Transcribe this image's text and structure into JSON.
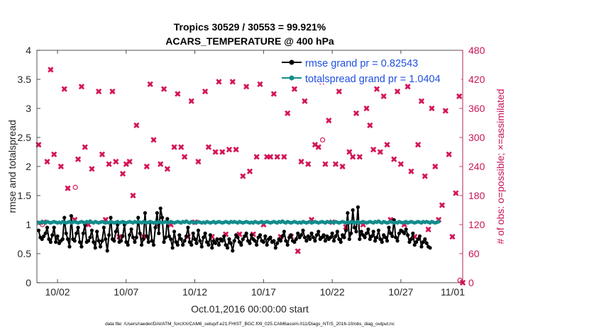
{
  "chart_data": {
    "type": "line",
    "title_line1": "Tropics 30529 / 30553 = 99.921%",
    "title_line2": "ACARS_TEMPERATURE @ 400 hPa",
    "xlabel": "Oct.01,2016 00:00:00 start",
    "ylabel_left": "rmse and totalspread",
    "ylabel_right": "# of obs: o=possible; ×=assimilated",
    "footnote": "data file: /Users/raeder/DAI/ATM_forcXX/CAM6_setup/f.e21.FHIST_BGC.f09_025.CAM6assim.011/Diags_NTrS_2016-10/obs_diag_output.nc",
    "xlim": [
      0.5,
      31.5
    ],
    "ylim_left": [
      0,
      4
    ],
    "ylim_right": [
      0,
      480
    ],
    "x_ticks": [
      {
        "x": 2,
        "label": "10/02"
      },
      {
        "x": 7,
        "label": "10/07"
      },
      {
        "x": 12,
        "label": "10/12"
      },
      {
        "x": 17,
        "label": "10/17"
      },
      {
        "x": 22,
        "label": "10/22"
      },
      {
        "x": 27,
        "label": "10/27"
      },
      {
        "x": 32,
        "label": "11/01"
      }
    ],
    "y_ticks_left": [
      0,
      0.5,
      1,
      1.5,
      2,
      2.5,
      3,
      3.5,
      4
    ],
    "y_tick_labels_left": [
      "0",
      "0.5",
      "1",
      "1.5",
      "2",
      "2.5",
      "3",
      "3.5",
      "4"
    ],
    "y_ticks_right": [
      0,
      60,
      120,
      180,
      240,
      300,
      360,
      420,
      480
    ],
    "y_tick_labels_right": [
      "0",
      "60",
      "120",
      "180",
      "240",
      "300",
      "360",
      "420",
      "480"
    ],
    "colors": {
      "rmse": "#000000",
      "spread": "#148c8c",
      "obs": "#d4175a",
      "legend_text": "#1f50e0",
      "right_axis": "#c8145a"
    },
    "legend": {
      "placement": "top-right",
      "entries": [
        "rmse grand pr = 0.82543",
        "totalspread grand pr = 1.0404"
      ]
    },
    "series": [
      {
        "name": "rmse grand pr = 0.82543",
        "axis": "left",
        "x_start": 0.625,
        "x_step": 0.125,
        "values": [
          0.9,
          0.78,
          0.75,
          0.8,
          0.85,
          0.95,
          0.75,
          0.7,
          0.82,
          0.95,
          0.7,
          0.8,
          0.68,
          0.72,
          0.75,
          1.12,
          0.85,
          0.75,
          0.62,
          1.15,
          0.75,
          0.72,
          0.85,
          0.95,
          0.7,
          0.62,
          0.85,
          1.0,
          0.7,
          0.72,
          0.78,
          0.9,
          0.7,
          0.6,
          0.88,
          0.72,
          0.62,
          0.72,
          0.95,
          0.75,
          0.55,
          0.82,
          1.12,
          0.75,
          0.72,
          0.88,
          1.0,
          0.7,
          0.72,
          0.8,
          1.0,
          0.7,
          0.65,
          0.82,
          0.92,
          0.78,
          0.7,
          0.78,
          1.12,
          0.85,
          0.65,
          0.75,
          1.2,
          0.8,
          0.7,
          1.05,
          0.72,
          0.65,
          0.95,
          1.2,
          0.85,
          1.28,
          1.12,
          0.7,
          0.78,
          1.1,
          0.8,
          0.75,
          0.6,
          0.88,
          0.7,
          0.65,
          0.82,
          0.75,
          0.65,
          0.72,
          0.8,
          0.95,
          0.7,
          0.65,
          0.85,
          0.75,
          0.68,
          0.9,
          0.72,
          0.62,
          0.78,
          0.85,
          0.7,
          0.65,
          0.82,
          0.6,
          0.72,
          0.68,
          0.75,
          0.65,
          0.75,
          0.72,
          0.8,
          0.65,
          0.6,
          0.75,
          0.68,
          0.55,
          0.72,
          0.82,
          0.78,
          0.7,
          0.65,
          0.75,
          0.8,
          0.85,
          0.72,
          0.68,
          0.82,
          0.75,
          0.72,
          0.65,
          0.78,
          0.82,
          0.72,
          0.7,
          0.8,
          0.65,
          0.75,
          0.78,
          0.7,
          0.72,
          0.6,
          0.68,
          0.75,
          0.72,
          0.8,
          0.88,
          0.72,
          0.65,
          0.78,
          0.82,
          0.72,
          0.7,
          0.75,
          0.85,
          0.78,
          0.82,
          0.9,
          0.78,
          0.72,
          0.8,
          0.75,
          0.85,
          0.78,
          0.72,
          0.82,
          0.88,
          0.75,
          0.78,
          0.82,
          0.72,
          0.8,
          0.75,
          0.78,
          0.85,
          0.72,
          0.8,
          0.88,
          0.75,
          0.7,
          0.82,
          0.78,
          0.9,
          1.2,
          0.75,
          0.85,
          1.25,
          0.95,
          0.88,
          1.3,
          0.75,
          0.88,
          0.82,
          0.78,
          0.85,
          0.92,
          0.75,
          0.8,
          0.88,
          0.72,
          0.78,
          0.9,
          0.75,
          0.7,
          0.82,
          0.78,
          0.72,
          0.95,
          0.85,
          0.8,
          1.08,
          0.78,
          0.72,
          0.85,
          0.9,
          0.88,
          0.85,
          0.92,
          0.82,
          0.7,
          0.75,
          0.85,
          0.65,
          0.7,
          0.75,
          0.8,
          0.62,
          0.7,
          0.75,
          0.68,
          0.62,
          0.6
        ]
      },
      {
        "name": "totalspread grand pr = 1.0404",
        "axis": "left",
        "x_start": 0.625,
        "x_step": 0.125,
        "values": [
          1.04,
          1.03,
          1.05,
          1.04,
          1.03,
          1.05,
          1.04,
          1.03,
          1.04,
          1.05,
          1.04,
          1.03,
          1.04,
          1.03,
          1.05,
          1.04,
          1.03,
          1.04,
          1.05,
          1.03,
          1.04,
          1.05,
          1.04,
          1.03,
          1.04,
          1.05,
          1.04,
          1.03,
          1.05,
          1.04,
          1.06,
          1.04,
          1.03,
          1.05,
          1.04,
          1.03,
          1.04,
          1.05,
          1.04,
          1.03,
          1.04,
          1.03,
          1.05,
          1.04,
          1.03,
          1.04,
          1.05,
          1.03,
          1.04,
          1.05,
          1.04,
          1.03,
          1.04,
          1.05,
          1.04,
          1.03,
          1.05,
          1.04,
          1.05,
          1.04,
          1.03,
          1.05,
          1.04,
          1.03,
          1.04,
          1.05,
          1.04,
          1.03,
          1.04,
          1.03,
          1.05,
          1.04,
          1.03,
          1.04,
          1.05,
          1.03,
          1.04,
          1.05,
          1.04,
          1.03,
          1.04,
          1.05,
          1.04,
          1.03,
          1.05,
          1.04,
          1.06,
          1.04,
          1.03,
          1.05,
          1.04,
          1.03,
          1.04,
          1.05,
          1.04,
          1.03,
          1.04,
          1.03,
          1.05,
          1.04,
          1.03,
          1.04,
          1.05,
          1.03,
          1.04,
          1.05,
          1.04,
          1.03,
          1.04,
          1.05,
          1.04,
          1.03,
          1.05,
          1.04,
          1.05,
          1.04,
          1.03,
          1.05,
          1.04,
          1.03,
          1.04,
          1.05,
          1.04,
          1.03,
          1.04,
          1.03,
          1.05,
          1.04,
          1.03,
          1.04,
          1.05,
          1.03,
          1.04,
          1.05,
          1.04,
          1.03,
          1.04,
          1.05,
          1.04,
          1.03,
          1.05,
          1.04,
          1.06,
          1.04,
          1.03,
          1.05,
          1.04,
          1.03,
          1.04,
          1.05,
          1.04,
          1.03,
          1.04,
          1.03,
          1.05,
          1.04,
          1.03,
          1.04,
          1.05,
          1.03,
          1.04,
          1.05,
          1.04,
          1.03,
          1.04,
          1.05,
          1.04,
          1.03,
          1.05,
          1.04,
          1.05,
          1.04,
          1.03,
          1.05,
          1.04,
          1.03,
          1.04,
          1.05,
          1.04,
          1.03,
          1.04,
          1.03,
          1.05,
          1.04,
          1.03,
          1.04,
          1.05,
          1.03,
          1.04,
          1.05,
          1.04,
          1.03,
          1.04,
          1.05,
          1.04,
          1.03,
          1.05,
          1.04,
          1.06,
          1.04,
          1.03,
          1.05,
          1.04,
          1.03,
          1.04,
          1.05,
          1.04,
          1.03,
          1.04,
          1.03,
          1.05,
          1.04,
          1.03,
          1.04,
          1.05,
          1.03,
          1.04,
          1.05,
          1.04,
          1.03,
          1.04,
          1.05,
          1.04,
          1.03,
          1.05,
          1.04,
          1.05,
          1.04,
          1.03,
          1.05,
          1.04,
          1.03,
          1.04,
          1.05
        ]
      }
    ],
    "obs_points": [
      [
        0.62,
        285
      ],
      [
        1.0,
        125
      ],
      [
        1.25,
        250
      ],
      [
        1.5,
        440
      ],
      [
        1.75,
        265
      ],
      [
        2.25,
        240
      ],
      [
        2.5,
        400
      ],
      [
        2.75,
        195
      ],
      [
        3.25,
        130
      ],
      [
        3.5,
        255
      ],
      [
        3.75,
        405
      ],
      [
        4.0,
        280
      ],
      [
        4.25,
        120
      ],
      [
        4.5,
        235
      ],
      [
        5.0,
        395
      ],
      [
        5.25,
        265
      ],
      [
        5.5,
        130
      ],
      [
        5.75,
        245
      ],
      [
        6.0,
        395
      ],
      [
        6.25,
        250
      ],
      [
        6.5,
        95
      ],
      [
        6.75,
        225
      ],
      [
        7.0,
        245
      ],
      [
        7.25,
        250
      ],
      [
        7.5,
        180
      ],
      [
        7.75,
        325
      ],
      [
        8.25,
        95
      ],
      [
        8.5,
        240
      ],
      [
        8.75,
        410
      ],
      [
        9.0,
        295
      ],
      [
        9.25,
        120
      ],
      [
        9.5,
        245
      ],
      [
        9.75,
        400
      ],
      [
        10.0,
        235
      ],
      [
        10.25,
        120
      ],
      [
        10.5,
        280
      ],
      [
        10.75,
        390
      ],
      [
        11.0,
        280
      ],
      [
        11.25,
        260
      ],
      [
        11.5,
        95
      ],
      [
        11.75,
        375
      ],
      [
        12.0,
        125
      ],
      [
        12.25,
        250
      ],
      [
        12.75,
        395
      ],
      [
        13.0,
        280
      ],
      [
        13.25,
        95
      ],
      [
        13.5,
        270
      ],
      [
        13.75,
        415
      ],
      [
        14.0,
        270
      ],
      [
        14.25,
        100
      ],
      [
        14.5,
        275
      ],
      [
        14.75,
        415
      ],
      [
        15.0,
        275
      ],
      [
        15.25,
        100
      ],
      [
        15.5,
        220
      ],
      [
        15.75,
        405
      ],
      [
        16.0,
        230
      ],
      [
        16.25,
        100
      ],
      [
        16.5,
        260
      ],
      [
        16.75,
        410
      ],
      [
        17.0,
        120
      ],
      [
        17.25,
        260
      ],
      [
        17.5,
        260
      ],
      [
        17.75,
        390
      ],
      [
        18.0,
        260
      ],
      [
        18.25,
        95
      ],
      [
        18.5,
        260
      ],
      [
        18.75,
        350
      ],
      [
        19.0,
        95
      ],
      [
        19.25,
        400
      ],
      [
        19.5,
        65
      ],
      [
        19.75,
        250
      ],
      [
        20.0,
        375
      ],
      [
        20.25,
        245
      ],
      [
        20.5,
        130
      ],
      [
        20.75,
        285
      ],
      [
        21.0,
        280
      ],
      [
        21.25,
        415
      ],
      [
        21.5,
        245
      ],
      [
        21.75,
        335
      ],
      [
        22.0,
        125
      ],
      [
        22.25,
        245
      ],
      [
        22.5,
        395
      ],
      [
        22.75,
        240
      ],
      [
        23.0,
        115
      ],
      [
        23.25,
        270
      ],
      [
        23.5,
        260
      ],
      [
        23.75,
        350
      ],
      [
        24.0,
        260
      ],
      [
        24.25,
        120
      ],
      [
        24.5,
        360
      ],
      [
        24.75,
        325
      ],
      [
        25.0,
        275
      ],
      [
        25.25,
        400
      ],
      [
        25.5,
        270
      ],
      [
        25.75,
        385
      ],
      [
        26.0,
        285
      ],
      [
        26.25,
        130
      ],
      [
        26.5,
        255
      ],
      [
        26.75,
        395
      ],
      [
        27.0,
        245
      ],
      [
        27.25,
        120
      ],
      [
        27.5,
        405
      ],
      [
        27.75,
        230
      ],
      [
        28.0,
        95
      ],
      [
        28.25,
        285
      ],
      [
        28.5,
        375
      ],
      [
        28.75,
        220
      ],
      [
        29.0,
        110
      ],
      [
        29.25,
        360
      ],
      [
        29.5,
        240
      ],
      [
        29.75,
        130
      ],
      [
        30.0,
        160
      ],
      [
        30.25,
        355
      ],
      [
        30.5,
        265
      ],
      [
        30.75,
        95
      ],
      [
        31.0,
        185
      ],
      [
        31.25,
        385
      ],
      [
        31.5,
        0
      ]
    ],
    "obs_possible_only": [
      [
        0.9,
        120
      ],
      [
        3.3,
        197
      ],
      [
        21.3,
        295
      ],
      [
        31.3,
        5
      ]
    ]
  }
}
